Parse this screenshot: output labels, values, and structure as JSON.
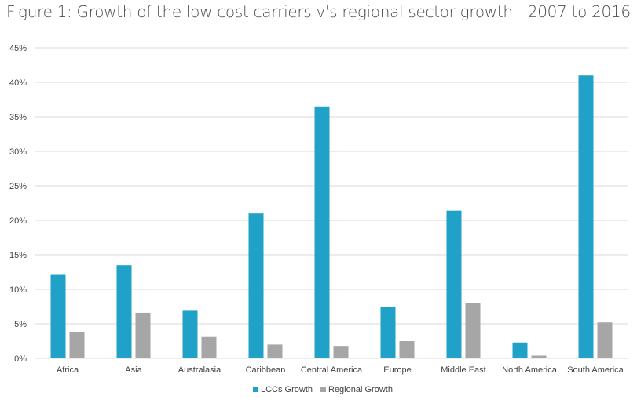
{
  "chart_data": {
    "type": "bar",
    "title": "Figure 1: Growth of the low cost carriers v's regional sector growth - 2007 to 2016",
    "categories": [
      "Africa",
      "Asia",
      "Australasia",
      "Caribbean",
      "Central America",
      "Europe",
      "Middle East",
      "North America",
      "South America"
    ],
    "series": [
      {
        "name": "LCCs Growth",
        "color": "#1fa1c8",
        "values": [
          12.1,
          13.5,
          7.0,
          21.0,
          36.5,
          7.4,
          21.4,
          2.3,
          41.0
        ]
      },
      {
        "name": "Regional Growth",
        "color": "#a6a6a6",
        "values": [
          3.8,
          6.6,
          3.1,
          2.0,
          1.8,
          2.5,
          8.0,
          0.4,
          5.2
        ]
      }
    ],
    "y_ticks": [
      "0%",
      "5%",
      "10%",
      "15%",
      "20%",
      "25%",
      "30%",
      "35%",
      "40%",
      "45%"
    ],
    "ylim": [
      0,
      45
    ],
    "xlabel": "",
    "ylabel": "",
    "grid": true,
    "legend_position": "bottom"
  }
}
